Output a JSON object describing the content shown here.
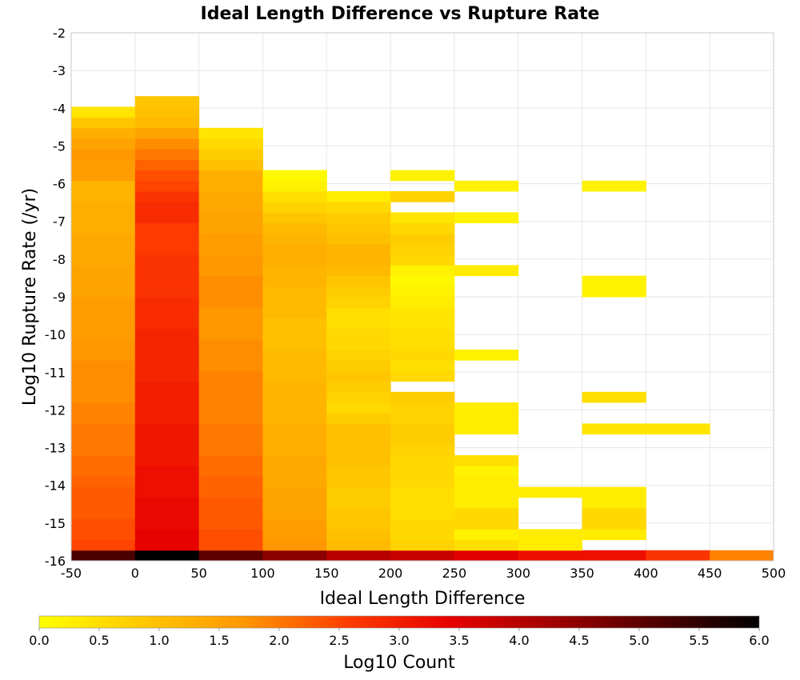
{
  "chart_data": {
    "type": "heatmap",
    "title": "Ideal Length Difference vs Rupture Rate",
    "xlabel": "Ideal Length Difference",
    "ylabel": "Log10 Rupture Rate (/yr)",
    "colorbar_label": "Log10 Count",
    "xlim": [
      -50,
      500
    ],
    "ylim": [
      -16,
      -2
    ],
    "x_ticks": [
      "-50",
      "0",
      "50",
      "100",
      "150",
      "200",
      "250",
      "300",
      "350",
      "400",
      "450",
      "500"
    ],
    "y_ticks": [
      "-2",
      "-3",
      "-4",
      "-5",
      "-6",
      "-7",
      "-8",
      "-9",
      "-10",
      "-11",
      "-12",
      "-13",
      "-14",
      "-15",
      "-16"
    ],
    "colorbar_ticks": [
      "0.0",
      "0.5",
      "1.0",
      "1.5",
      "2.0",
      "2.5",
      "3.0",
      "3.5",
      "4.0",
      "4.5",
      "5.0",
      "5.5",
      "6.0"
    ],
    "colorbar_range": [
      0,
      6
    ],
    "colormap": [
      "#ffff00",
      "#ffc800",
      "#ff9600",
      "#ff3c00",
      "#e60000",
      "#a00000",
      "#500000",
      "#000000"
    ],
    "x_bin_width": 50,
    "y_bin_height": 0.28,
    "columns": [
      {
        "x0": -50,
        "y_start": -16.0,
        "values": [
          5.2,
          2.5,
          2.4,
          2.4,
          2.3,
          2.3,
          2.3,
          2.2,
          2.1,
          2.1,
          2.0,
          2.0,
          2.0,
          1.9,
          1.9,
          1.8,
          1.8,
          1.8,
          1.8,
          1.7,
          1.7,
          1.6,
          1.6,
          1.6,
          1.6,
          1.5,
          1.5,
          1.5,
          1.4,
          1.4,
          1.4,
          1.3,
          1.3,
          1.3,
          1.2,
          1.2,
          1.6,
          1.6,
          1.7,
          1.5,
          1.3,
          0.9,
          0.4
        ]
      },
      {
        "x0": 0,
        "y_start": -16.0,
        "values": [
          6.0,
          3.4,
          3.4,
          3.3,
          3.3,
          3.3,
          3.2,
          3.2,
          3.2,
          3.1,
          3.1,
          3.1,
          3.1,
          3.0,
          3.0,
          3.0,
          3.0,
          2.9,
          2.9,
          2.9,
          2.9,
          2.9,
          2.8,
          2.8,
          2.8,
          2.7,
          2.7,
          2.7,
          2.7,
          2.6,
          2.6,
          2.6,
          2.8,
          2.8,
          2.7,
          2.5,
          2.4,
          2.2,
          2.0,
          1.8,
          1.5,
          1.1,
          1.0,
          0.9
        ]
      },
      {
        "x0": 50,
        "y_start": -16.0,
        "values": [
          5.0,
          2.4,
          2.4,
          2.3,
          2.3,
          2.3,
          2.2,
          2.2,
          2.1,
          2.1,
          2.0,
          2.0,
          2.0,
          1.9,
          1.9,
          1.9,
          1.9,
          1.9,
          1.8,
          1.8,
          1.8,
          1.7,
          1.7,
          1.7,
          1.8,
          1.8,
          1.8,
          1.7,
          1.7,
          1.6,
          1.6,
          1.5,
          1.5,
          1.4,
          1.4,
          1.3,
          1.3,
          1.0,
          0.8,
          0.6,
          0.4
        ]
      },
      {
        "x0": 100,
        "y_start": -16.0,
        "values": [
          4.5,
          1.7,
          1.6,
          1.6,
          1.5,
          1.5,
          1.5,
          1.4,
          1.4,
          1.4,
          1.3,
          1.3,
          1.3,
          1.2,
          1.2,
          1.2,
          1.2,
          1.1,
          1.1,
          1.1,
          1.0,
          1.0,
          1.0,
          1.1,
          1.1,
          1.1,
          1.2,
          1.2,
          1.3,
          1.3,
          1.2,
          1.1,
          0.9,
          0.7,
          0.5,
          0.2,
          0.1
        ]
      },
      {
        "x0": 150,
        "y_start": -16.0,
        "values": [
          4.0,
          1.1,
          1.0,
          0.9,
          0.9,
          0.8,
          0.8,
          0.9,
          0.9,
          1.0,
          1.0,
          1.0,
          1.0,
          0.8,
          0.6,
          0.7,
          0.8,
          0.9,
          0.8,
          0.7,
          0.6,
          0.6,
          0.5,
          0.5,
          0.7,
          0.8,
          0.9,
          1.1,
          1.2,
          1.2,
          1.0,
          0.9,
          0.8,
          0.6,
          0.3
        ]
      },
      {
        "x0": 200,
        "y_start": -16.0,
        "values": [
          3.8,
          0.7,
          0.6,
          0.6,
          0.5,
          0.5,
          0.5,
          0.6,
          0.6,
          0.6,
          0.7,
          0.8,
          0.8,
          0.7,
          0.7,
          0.8,
          null,
          0.6,
          0.5,
          0.6,
          0.5,
          0.5,
          0.4,
          0.4,
          0.3,
          0.2,
          0.1,
          0.2,
          0.6,
          0.7,
          0.8,
          0.6,
          0.4,
          null,
          0.7,
          null,
          0.2
        ]
      },
      {
        "x0": 250,
        "y_start": -16.0,
        "values": [
          3.5,
          0.5,
          0.2,
          0.6,
          0.6,
          0.3,
          0.3,
          0.3,
          0.2,
          0.5,
          null,
          null,
          0.3,
          0.3,
          0.3,
          null,
          null,
          null,
          null,
          0.2,
          null,
          null,
          null,
          null,
          null,
          null,
          null,
          0.3,
          null,
          null,
          null,
          null,
          0.2,
          null,
          null,
          0.2
        ]
      },
      {
        "x0": 300,
        "y_start": -16.0,
        "values": [
          3.2,
          0.3,
          0.3,
          null,
          null,
          null,
          0.3
        ]
      },
      {
        "x0": 350,
        "y_start": -16.0,
        "values": [
          3.2,
          null,
          0.3,
          0.6,
          0.6,
          0.3,
          0.3,
          null,
          null,
          null,
          null,
          null,
          0.4,
          null,
          null,
          0.5,
          null,
          null,
          null,
          null,
          null,
          null,
          null,
          null,
          null,
          0.2,
          0.2,
          null,
          null,
          null,
          null,
          null,
          null,
          null,
          null,
          0.2
        ]
      },
      {
        "x0": 400,
        "y_start": -16.0,
        "values": [
          2.7,
          null,
          null,
          null,
          null,
          null,
          null,
          null,
          null,
          null,
          null,
          null,
          0.4
        ]
      },
      {
        "x0": 450,
        "y_start": -16.0,
        "values": [
          1.9
        ]
      }
    ]
  }
}
